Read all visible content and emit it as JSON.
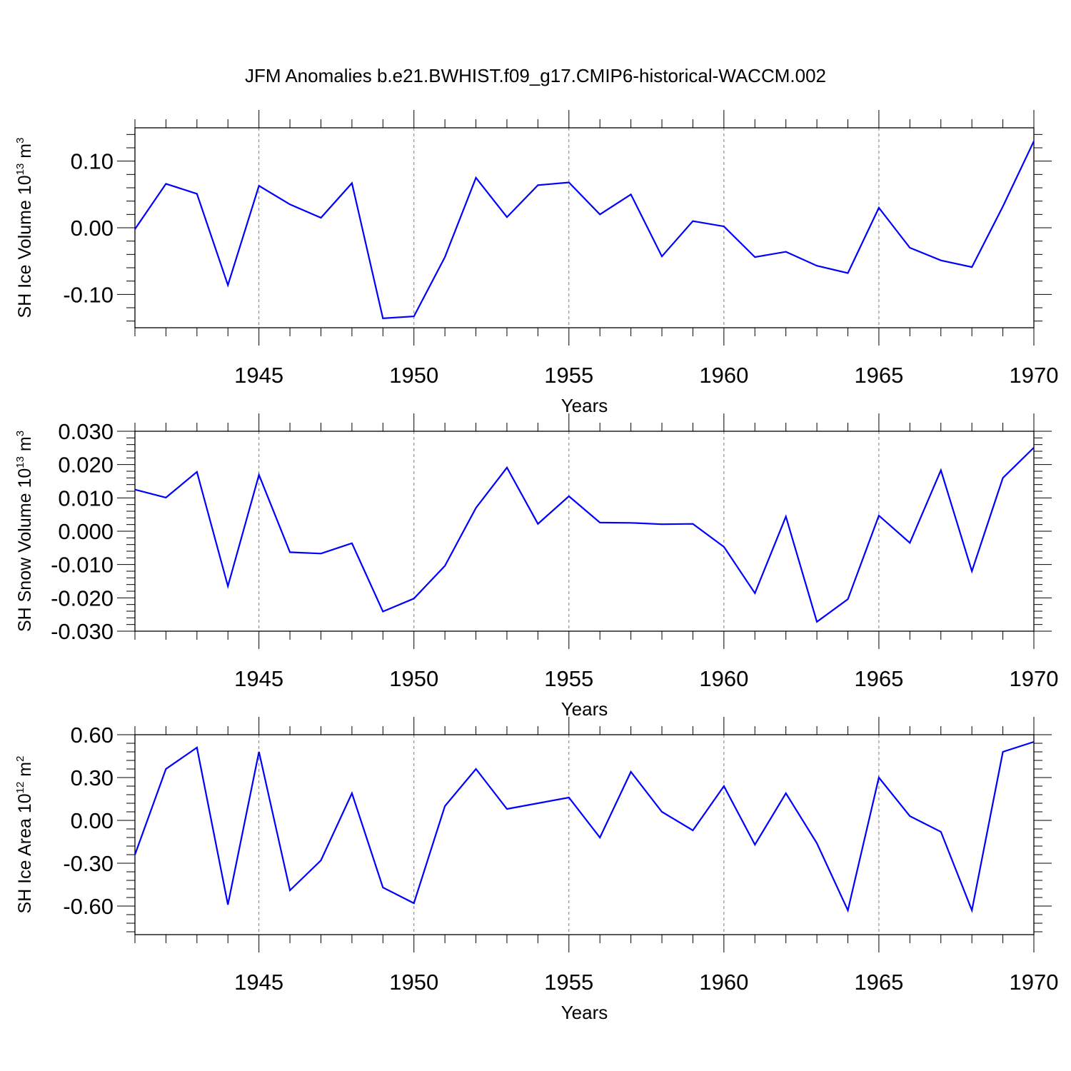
{
  "title": "JFM Anomalies b.e21.BWHIST.f09_g17.CMIP6-historical-WACCM.002",
  "colors": {
    "series": "#0000ff",
    "grid": "#7a7a7a",
    "axis": "#000000"
  },
  "chart_data": [
    {
      "type": "line",
      "ylabel": "SH Ice Volume 10",
      "ylabel_exp": "13",
      "ylabel_unit": "m",
      "ylabel_unit_exp": "3",
      "xlabel": "Years",
      "xlim": [
        1941,
        1970
      ],
      "ylim": [
        -0.15,
        0.15
      ],
      "yticks": [
        -0.1,
        0.0,
        0.1
      ],
      "ytick_labels": [
        "-0.10",
        "0.00",
        "0.10"
      ],
      "xticks": [
        1945,
        1950,
        1955,
        1960,
        1965,
        1970
      ],
      "xtick_labels": [
        "1945",
        "1950",
        "1955",
        "1960",
        "1965",
        "1970"
      ],
      "grid_x": [
        1945,
        1950,
        1955,
        1960,
        1965
      ],
      "x": [
        1941,
        1942,
        1943,
        1944,
        1945,
        1946,
        1947,
        1948,
        1949,
        1950,
        1951,
        1952,
        1953,
        1954,
        1955,
        1956,
        1957,
        1958,
        1959,
        1960,
        1961,
        1962,
        1963,
        1964,
        1965,
        1966,
        1967,
        1968,
        1969,
        1970
      ],
      "values": [
        -0.002,
        0.066,
        0.051,
        -0.086,
        0.063,
        0.035,
        0.015,
        0.067,
        -0.136,
        -0.133,
        -0.044,
        0.075,
        0.016,
        0.064,
        0.068,
        0.02,
        0.05,
        -0.043,
        0.01,
        0.002,
        -0.044,
        -0.036,
        -0.057,
        -0.068,
        0.03,
        -0.03,
        -0.049,
        -0.059,
        0.032,
        0.13
      ]
    },
    {
      "type": "line",
      "ylabel": "SH Snow Volume 10",
      "ylabel_exp": "13",
      "ylabel_unit": "m",
      "ylabel_unit_exp": "3",
      "xlabel": "Years",
      "xlim": [
        1941,
        1970
      ],
      "ylim": [
        -0.03,
        0.03
      ],
      "yticks": [
        -0.03,
        -0.02,
        -0.01,
        0.0,
        0.01,
        0.02,
        0.03
      ],
      "ytick_labels": [
        "-0.030",
        "-0.020",
        "-0.010",
        "0.000",
        "0.010",
        "0.020",
        "0.030"
      ],
      "xticks": [
        1945,
        1950,
        1955,
        1960,
        1965,
        1970
      ],
      "xtick_labels": [
        "1945",
        "1950",
        "1955",
        "1960",
        "1965",
        "1970"
      ],
      "grid_x": [
        1945,
        1950,
        1955,
        1960,
        1965
      ],
      "x": [
        1941,
        1942,
        1943,
        1944,
        1945,
        1946,
        1947,
        1948,
        1949,
        1950,
        1951,
        1952,
        1953,
        1954,
        1955,
        1956,
        1957,
        1958,
        1959,
        1960,
        1961,
        1962,
        1963,
        1964,
        1965,
        1966,
        1967,
        1968,
        1969,
        1970
      ],
      "values": [
        0.0125,
        0.0101,
        0.0178,
        -0.0165,
        0.0169,
        -0.0063,
        -0.0067,
        -0.0036,
        -0.0241,
        -0.0202,
        -0.0104,
        0.007,
        0.0191,
        0.0022,
        0.0105,
        0.0026,
        0.0025,
        0.0021,
        0.0022,
        -0.0047,
        -0.0186,
        0.0044,
        -0.0272,
        -0.0204,
        0.0047,
        -0.0035,
        0.0183,
        -0.012,
        0.016,
        0.0251
      ]
    },
    {
      "type": "line",
      "ylabel": "SH Ice Area 10",
      "ylabel_exp": "12",
      "ylabel_unit": "m",
      "ylabel_unit_exp": "2",
      "xlabel": "Years",
      "xlim": [
        1941,
        1970
      ],
      "ylim": [
        -0.8,
        0.6
      ],
      "yticks": [
        -0.6,
        -0.3,
        0.0,
        0.3,
        0.6
      ],
      "ytick_labels": [
        "-0.60",
        "-0.30",
        "0.00",
        "0.30",
        "0.60"
      ],
      "xticks": [
        1945,
        1950,
        1955,
        1960,
        1965,
        1970
      ],
      "xtick_labels": [
        "1945",
        "1950",
        "1955",
        "1960",
        "1965",
        "1970"
      ],
      "grid_x": [
        1945,
        1950,
        1955,
        1960,
        1965
      ],
      "x": [
        1941,
        1942,
        1943,
        1944,
        1945,
        1946,
        1947,
        1948,
        1949,
        1950,
        1951,
        1952,
        1953,
        1954,
        1955,
        1956,
        1957,
        1958,
        1959,
        1960,
        1961,
        1962,
        1963,
        1964,
        1965,
        1966,
        1967,
        1968,
        1969,
        1970
      ],
      "values": [
        -0.24,
        0.36,
        0.51,
        -0.59,
        0.48,
        -0.49,
        -0.28,
        0.19,
        -0.47,
        -0.58,
        0.1,
        0.36,
        0.08,
        0.12,
        0.16,
        -0.12,
        0.34,
        0.06,
        -0.07,
        0.24,
        -0.17,
        0.19,
        -0.16,
        -0.63,
        0.3,
        0.03,
        -0.08,
        -0.63,
        0.48,
        0.55
      ]
    }
  ]
}
